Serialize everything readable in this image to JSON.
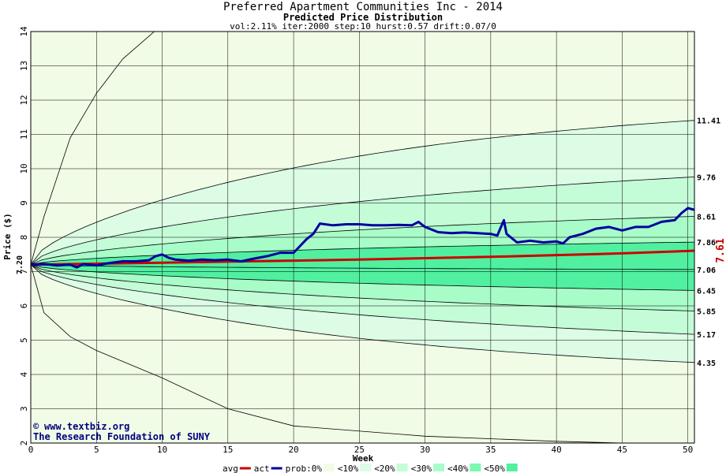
{
  "chart_data": {
    "type": "line",
    "title": "Preferred Apartment Communities Inc - 2014",
    "subtitle": "Predicted Price Distribution",
    "params": "vol:2.11% iter:2000 step:10 hurst:0.57 drift:0.07/0",
    "xlabel": "Week",
    "ylabel": "Price ($)",
    "xlim": [
      0,
      50.5
    ],
    "ylim": [
      2,
      14
    ],
    "x_ticks": [
      0,
      5,
      10,
      15,
      20,
      25,
      30,
      35,
      40,
      45,
      50
    ],
    "y_ticks": [
      2,
      3,
      4,
      5,
      6,
      7,
      8,
      9,
      10,
      11,
      12,
      13,
      14
    ],
    "start_value": "7.20",
    "end_value": "7.61",
    "envelope_right_labels": [
      "11.41",
      "9.76",
      "8.61",
      "7.86",
      "7.06",
      "6.45",
      "5.85",
      "5.17",
      "4.35"
    ],
    "band_edges_final": {
      "outer_upper": [
        [
          0,
          7.2
        ],
        [
          1,
          8.6
        ],
        [
          3,
          10.9
        ],
        [
          5,
          12.2
        ],
        [
          7,
          13.2
        ],
        [
          10,
          14.2
        ]
      ],
      "outer_lower": [
        [
          0,
          7.2
        ],
        [
          1,
          5.8
        ],
        [
          3,
          5.1
        ],
        [
          5,
          4.7
        ],
        [
          10,
          3.9
        ],
        [
          15,
          3.0
        ],
        [
          20,
          2.5
        ],
        [
          30,
          2.2
        ],
        [
          40,
          2.05
        ],
        [
          50,
          1.95
        ]
      ]
    },
    "series": [
      {
        "name": "avg",
        "color": "#cc0000",
        "x": [
          0,
          5,
          10,
          15,
          20,
          25,
          30,
          35,
          40,
          45,
          50,
          50.5
        ],
        "y": [
          7.2,
          7.23,
          7.26,
          7.29,
          7.32,
          7.35,
          7.39,
          7.43,
          7.48,
          7.53,
          7.6,
          7.61
        ]
      },
      {
        "name": "act",
        "color": "#0000a0",
        "x": [
          0,
          1,
          2,
          3,
          3.5,
          4,
          5,
          6,
          7,
          8,
          9,
          9.5,
          10,
          10.5,
          11,
          12,
          13,
          14,
          15,
          16,
          17,
          18,
          19,
          20,
          20.5,
          21,
          21.5,
          22,
          23,
          24,
          25,
          26,
          27,
          28,
          29,
          29.5,
          30,
          31,
          32,
          33,
          34,
          35,
          35.5,
          36,
          36.2,
          37,
          38,
          39,
          40,
          40.5,
          41,
          42,
          43,
          44,
          45,
          46,
          47,
          48,
          49,
          49.5,
          50,
          50.5
        ],
        "y": [
          7.2,
          7.22,
          7.18,
          7.2,
          7.12,
          7.22,
          7.18,
          7.25,
          7.3,
          7.3,
          7.33,
          7.45,
          7.5,
          7.4,
          7.35,
          7.32,
          7.35,
          7.33,
          7.35,
          7.3,
          7.38,
          7.45,
          7.55,
          7.55,
          7.75,
          7.95,
          8.1,
          8.4,
          8.35,
          8.38,
          8.38,
          8.35,
          8.35,
          8.36,
          8.35,
          8.45,
          8.3,
          8.15,
          8.12,
          8.14,
          8.12,
          8.1,
          8.05,
          8.5,
          8.1,
          7.85,
          7.9,
          7.85,
          7.88,
          7.82,
          8.0,
          8.1,
          8.25,
          8.3,
          8.2,
          8.3,
          8.3,
          8.45,
          8.5,
          8.7,
          8.85,
          8.8
        ]
      }
    ],
    "legend": [
      "avg",
      "act",
      "prob:0%",
      "<10%",
      "<20%",
      "<30%",
      "<40%",
      "<50%"
    ],
    "legend_colors": [
      "#cc0000",
      "#0000a0",
      "#f0fce6",
      "#dcfce6",
      "#c4fcd8",
      "#a8fcc8",
      "#7cf8b0",
      "#50f0a0"
    ],
    "credit_lines": [
      "www.textbiz.org",
      "The Research Foundation of SUNY"
    ],
    "colors": {
      "band0": "#f0fce6",
      "band1": "#dcfce6",
      "band2": "#c4fcd8",
      "band3": "#a8fcc8",
      "band4": "#7cf8b0",
      "band5": "#50f0a0",
      "grid": "#000000",
      "avg": "#cc0000",
      "act": "#0000a0",
      "credit": "#000080"
    }
  }
}
